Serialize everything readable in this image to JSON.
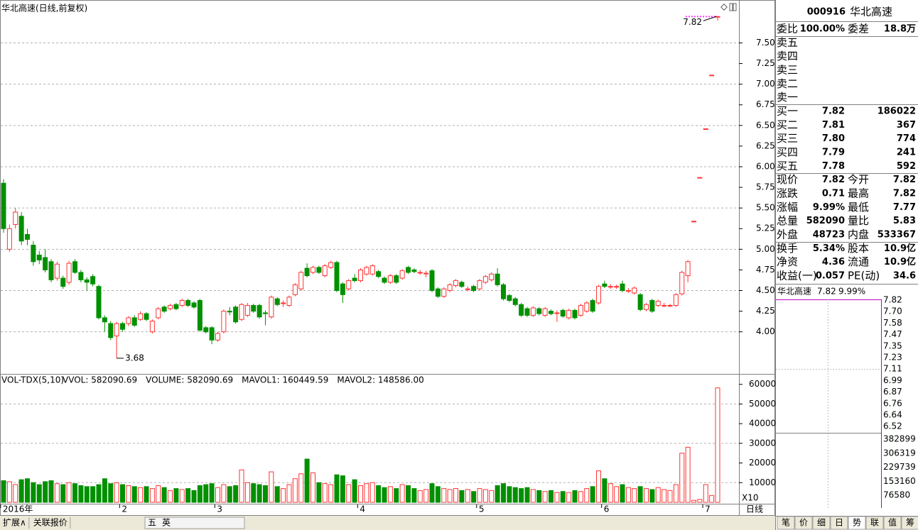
{
  "title": "华北高速(日线,前复权)",
  "chart_data": [
    {
      "type": "candlestick",
      "up_color": "#ff3232",
      "down_color": "#009000",
      "ylim": [
        3.49,
        8.02
      ],
      "yticks": [
        {
          "value": 4.0,
          "label": "4.00"
        },
        {
          "value": 4.25,
          "label": "4.25"
        },
        {
          "value": 4.5,
          "label": "4.50"
        },
        {
          "value": 4.75,
          "label": "4.75"
        },
        {
          "value": 5.0,
          "label": "5.00"
        },
        {
          "value": 5.25,
          "label": "5.25"
        },
        {
          "value": 5.5,
          "label": "5.50"
        },
        {
          "value": 5.75,
          "label": "5.75"
        },
        {
          "value": 6.0,
          "label": "6.00"
        },
        {
          "value": 6.25,
          "label": "6.25"
        },
        {
          "value": 6.5,
          "label": "6.50"
        },
        {
          "value": 6.75,
          "label": "6.75"
        },
        {
          "value": 7.0,
          "label": "7.00"
        },
        {
          "value": 7.25,
          "label": "7.25"
        },
        {
          "value": 7.5,
          "label": "7.50"
        }
      ],
      "grid": true,
      "high_label": 7.82,
      "low_label": 3.68,
      "categories": [
        "2016年",
        null,
        null,
        null,
        null,
        null,
        null,
        null,
        null,
        null,
        null,
        null,
        null,
        null,
        null,
        null,
        null,
        null,
        null,
        null,
        "2",
        null,
        null,
        null,
        null,
        null,
        null,
        null,
        null,
        null,
        null,
        null,
        null,
        null,
        null,
        null,
        "3",
        null,
        null,
        null,
        null,
        null,
        null,
        null,
        null,
        null,
        null,
        null,
        null,
        null,
        null,
        null,
        null,
        null,
        null,
        null,
        null,
        null,
        null,
        null,
        "4",
        null,
        null,
        null,
        null,
        null,
        null,
        null,
        null,
        null,
        null,
        null,
        null,
        null,
        null,
        null,
        null,
        null,
        null,
        null,
        "5",
        null,
        null,
        null,
        null,
        null,
        null,
        null,
        null,
        null,
        null,
        null,
        null,
        null,
        null,
        null,
        null,
        null,
        null,
        null,
        null,
        "6",
        null,
        null,
        null,
        null,
        null,
        null,
        null,
        null,
        null,
        null,
        null,
        null,
        null,
        null,
        null,
        null,
        "7",
        null,
        null
      ],
      "ohlc": [
        [
          5.8,
          5.85,
          5.2,
          5.25
        ],
        [
          5.0,
          5.3,
          4.97,
          5.25
        ],
        [
          5.3,
          5.5,
          5.25,
          5.45
        ],
        [
          5.4,
          5.45,
          5.05,
          5.1
        ],
        [
          5.18,
          5.25,
          5.05,
          5.12
        ],
        [
          5.05,
          5.1,
          4.8,
          4.85
        ],
        [
          4.93,
          4.98,
          4.82,
          4.87
        ],
        [
          4.9,
          5.0,
          4.72,
          4.75
        ],
        [
          4.85,
          4.88,
          4.6,
          4.63
        ],
        [
          4.65,
          4.85,
          4.62,
          4.82
        ],
        [
          4.65,
          4.68,
          4.52,
          4.55
        ],
        [
          4.6,
          4.86,
          4.57,
          4.83
        ],
        [
          4.85,
          4.88,
          4.7,
          4.72
        ],
        [
          4.72,
          4.75,
          4.6,
          4.63
        ],
        [
          4.63,
          4.66,
          4.5,
          4.6
        ],
        [
          4.67,
          4.7,
          4.55,
          4.58
        ],
        [
          4.55,
          4.57,
          4.15,
          4.17
        ],
        [
          4.17,
          4.2,
          4.0,
          4.12
        ],
        [
          4.1,
          4.13,
          3.9,
          3.93
        ],
        [
          3.95,
          4.12,
          3.68,
          4.1
        ],
        [
          4.1,
          4.12,
          4.0,
          4.03
        ],
        [
          4.1,
          4.19,
          4.07,
          4.17
        ],
        [
          4.17,
          4.2,
          4.06,
          4.08
        ],
        [
          4.15,
          4.25,
          4.13,
          4.22
        ],
        [
          4.22,
          4.24,
          4.13,
          4.15
        ],
        [
          4.0,
          4.15,
          3.98,
          4.13
        ],
        [
          4.17,
          4.3,
          4.15,
          4.28
        ],
        [
          4.3,
          4.32,
          4.23,
          4.25
        ],
        [
          4.28,
          4.34,
          4.26,
          4.32
        ],
        [
          4.33,
          4.35,
          4.26,
          4.28
        ],
        [
          4.32,
          4.4,
          4.3,
          4.38
        ],
        [
          4.38,
          4.4,
          4.3,
          4.32
        ],
        [
          4.35,
          4.37,
          4.28,
          4.3
        ],
        [
          4.38,
          4.4,
          4.0,
          4.02
        ],
        [
          4.05,
          4.07,
          3.98,
          4.0
        ],
        [
          4.05,
          4.07,
          3.85,
          3.9
        ],
        [
          3.9,
          4.0,
          3.88,
          3.98
        ],
        [
          4.0,
          4.27,
          3.98,
          4.25
        ],
        [
          4.25,
          4.3,
          4.2,
          4.24
        ],
        [
          4.3,
          4.32,
          4.1,
          4.12
        ],
        [
          4.15,
          4.35,
          4.13,
          4.33
        ],
        [
          4.2,
          4.35,
          4.18,
          4.32
        ],
        [
          4.32,
          4.34,
          4.23,
          4.25
        ],
        [
          4.32,
          4.34,
          4.16,
          4.18
        ],
        [
          4.23,
          4.26,
          4.08,
          4.22
        ],
        [
          4.18,
          4.44,
          4.16,
          4.42
        ],
        [
          4.4,
          4.42,
          4.31,
          4.33
        ],
        [
          4.35,
          4.38,
          4.3,
          4.35
        ],
        [
          4.32,
          4.44,
          4.3,
          4.42
        ],
        [
          4.45,
          4.59,
          4.43,
          4.57
        ],
        [
          4.52,
          4.74,
          4.5,
          4.72
        ],
        [
          4.77,
          4.83,
          4.66,
          4.68
        ],
        [
          4.72,
          4.8,
          4.7,
          4.78
        ],
        [
          4.78,
          4.8,
          4.7,
          4.72
        ],
        [
          4.68,
          4.82,
          4.66,
          4.8
        ],
        [
          4.78,
          4.86,
          4.76,
          4.84
        ],
        [
          4.84,
          4.86,
          4.48,
          4.5
        ],
        [
          4.58,
          4.6,
          4.35,
          4.45
        ],
        [
          4.52,
          4.64,
          4.5,
          4.62
        ],
        [
          4.65,
          4.7,
          4.6,
          4.62
        ],
        [
          4.62,
          4.77,
          4.6,
          4.75
        ],
        [
          4.7,
          4.8,
          4.68,
          4.78
        ],
        [
          4.7,
          4.82,
          4.68,
          4.8
        ],
        [
          4.73,
          4.75,
          4.65,
          4.67
        ],
        [
          4.65,
          4.67,
          4.58,
          4.6
        ],
        [
          4.6,
          4.7,
          4.58,
          4.68
        ],
        [
          4.68,
          4.7,
          4.58,
          4.6
        ],
        [
          4.65,
          4.76,
          4.63,
          4.74
        ],
        [
          4.78,
          4.8,
          4.7,
          4.72
        ],
        [
          4.75,
          4.77,
          4.71,
          4.73
        ],
        [
          4.72,
          4.75,
          4.69,
          4.72
        ],
        [
          4.71,
          4.74,
          4.66,
          4.71
        ],
        [
          4.74,
          4.76,
          4.48,
          4.5
        ],
        [
          4.52,
          4.54,
          4.41,
          4.43
        ],
        [
          4.43,
          4.54,
          4.41,
          4.52
        ],
        [
          4.5,
          4.59,
          4.48,
          4.57
        ],
        [
          4.56,
          4.64,
          4.54,
          4.62
        ],
        [
          4.6,
          4.62,
          4.53,
          4.55
        ],
        [
          4.52,
          4.55,
          4.49,
          4.52
        ],
        [
          4.55,
          4.57,
          4.48,
          4.5
        ],
        [
          4.52,
          4.64,
          4.5,
          4.62
        ],
        [
          4.6,
          4.69,
          4.58,
          4.67
        ],
        [
          4.63,
          4.72,
          4.61,
          4.7
        ],
        [
          4.7,
          4.77,
          4.55,
          4.57
        ],
        [
          4.57,
          4.59,
          4.38,
          4.4
        ],
        [
          4.44,
          4.46,
          4.36,
          4.38
        ],
        [
          4.4,
          4.42,
          4.31,
          4.33
        ],
        [
          4.33,
          4.35,
          4.18,
          4.2
        ],
        [
          4.28,
          4.3,
          4.18,
          4.2
        ],
        [
          4.2,
          4.31,
          4.18,
          4.29
        ],
        [
          4.28,
          4.3,
          4.2,
          4.22
        ],
        [
          4.2,
          4.3,
          4.18,
          4.28
        ],
        [
          4.25,
          4.27,
          4.2,
          4.22
        ],
        [
          4.23,
          4.26,
          4.12,
          4.23
        ],
        [
          4.26,
          4.28,
          4.17,
          4.19
        ],
        [
          4.17,
          4.28,
          4.15,
          4.26
        ],
        [
          4.26,
          4.28,
          4.15,
          4.17
        ],
        [
          4.2,
          4.34,
          4.18,
          4.32
        ],
        [
          4.25,
          4.37,
          4.23,
          4.35
        ],
        [
          4.38,
          4.4,
          4.23,
          4.25
        ],
        [
          4.35,
          4.57,
          4.33,
          4.55
        ],
        [
          4.58,
          4.62,
          4.53,
          4.55
        ],
        [
          4.55,
          4.58,
          4.52,
          4.55
        ],
        [
          4.55,
          4.57,
          4.52,
          4.55
        ],
        [
          4.58,
          4.62,
          4.48,
          4.5
        ],
        [
          4.5,
          4.53,
          4.47,
          4.5
        ],
        [
          4.47,
          4.55,
          4.45,
          4.53
        ],
        [
          4.45,
          4.47,
          4.25,
          4.27
        ],
        [
          4.27,
          4.35,
          4.25,
          4.33
        ],
        [
          4.38,
          4.4,
          4.23,
          4.25
        ],
        [
          4.32,
          4.39,
          4.3,
          4.37
        ],
        [
          4.32,
          4.35,
          4.3,
          4.32
        ],
        [
          4.32,
          4.34,
          4.3,
          4.32
        ],
        [
          4.32,
          4.47,
          4.3,
          4.45
        ],
        [
          4.46,
          4.74,
          4.44,
          4.72
        ],
        [
          4.68,
          4.87,
          4.6,
          4.85
        ],
        [
          5.34,
          5.34,
          5.34,
          5.34
        ],
        [
          5.87,
          5.87,
          5.87,
          5.87
        ],
        [
          6.46,
          6.46,
          6.46,
          6.46
        ],
        [
          7.11,
          7.11,
          7.11,
          7.11
        ],
        [
          7.82,
          7.82,
          7.77,
          7.82
        ]
      ]
    },
    {
      "type": "bar",
      "title": "VOL-TDX(5,10)",
      "indicators": [
        {
          "text": "VVOL: 582090.69",
          "color": "#000000"
        },
        {
          "text": "VOLUME: 582090.69",
          "color": "#d000d0"
        },
        {
          "text": "MAVOL1: 160449.59",
          "color": "#d000d0"
        },
        {
          "text": "MAVOL2: 148586.00",
          "color": "#808080"
        }
      ],
      "ylim": [
        0,
        65300
      ],
      "yticks": [
        10000,
        20000,
        30000,
        40000,
        50000,
        60000
      ],
      "grid": true,
      "unit_label": "X10",
      "values": [
        11000,
        10500,
        9000,
        11500,
        12000,
        10000,
        9000,
        10500,
        11000,
        9500,
        9000,
        10000,
        9500,
        8500,
        8000,
        8000,
        9000,
        12000,
        9500,
        10000,
        9000,
        8500,
        8000,
        7500,
        8000,
        7000,
        8500,
        7500,
        6000,
        7000,
        6500,
        7000,
        6000,
        8500,
        9000,
        9500,
        7500,
        9000,
        8000,
        8500,
        16500,
        10000,
        9500,
        9000,
        8500,
        15500,
        8000,
        7000,
        9000,
        12000,
        14500,
        22000,
        15000,
        10000,
        9500,
        9000,
        14000,
        13500,
        9000,
        11500,
        8500,
        9500,
        10000,
        8500,
        7500,
        8000,
        7000,
        9000,
        8500,
        7000,
        6000,
        6500,
        9500,
        8000,
        7000,
        6500,
        7000,
        6000,
        6500,
        5500,
        7000,
        6500,
        6000,
        8500,
        9500,
        8000,
        7500,
        7000,
        7500,
        6500,
        6000,
        5500,
        6000,
        5000,
        5500,
        5000,
        6000,
        5500,
        7000,
        8000,
        16000,
        12000,
        9500,
        8000,
        9000,
        7500,
        7000,
        8000,
        7000,
        6500,
        7500,
        6500,
        6000,
        9000,
        25000,
        28000,
        1000,
        1500,
        9000,
        3500,
        58209
      ]
    }
  ],
  "period": "日线",
  "toolbar": [
    "扩展∧",
    "关联报价"
  ],
  "ime": [
    "五",
    "英"
  ],
  "quote": {
    "code": "000916",
    "name": "华北高速",
    "rows": [
      {
        "label": "委比",
        "value": "100.00%",
        "label2": "委差",
        "value2": "18.8万",
        "color": "#e00000",
        "color2": "#e00000"
      },
      {
        "label": "卖五"
      },
      {
        "label": "卖四"
      },
      {
        "label": "卖三"
      },
      {
        "label": "卖二"
      },
      {
        "label": "卖一"
      },
      {
        "label": "买一",
        "value": "7.82",
        "value2": "186022",
        "color": "#e00000",
        "color2": "#c85a00"
      },
      {
        "label": "买二",
        "value": "7.81",
        "value2": "367",
        "color": "#e00000",
        "color2": "#c85a00"
      },
      {
        "label": "买三",
        "value": "7.80",
        "value2": "774",
        "color": "#e00000",
        "color2": "#c85a00"
      },
      {
        "label": "买四",
        "value": "7.79",
        "value2": "241",
        "color": "#e00000",
        "color2": "#c85a00"
      },
      {
        "label": "买五",
        "value": "7.78",
        "value2": "592",
        "color": "#e00000",
        "color2": "#c85a00"
      },
      {
        "label": "现价",
        "value": "7.82",
        "label2": "今开",
        "value2": "7.82",
        "color": "#e00000",
        "color2": "#e00000"
      },
      {
        "label": "涨跌",
        "value": "0.71",
        "label2": "最高",
        "value2": "7.82",
        "color": "#e00000",
        "color2": "#e00000"
      },
      {
        "label": "涨幅",
        "value": "9.99%",
        "label2": "最低",
        "value2": "7.77",
        "color": "#e00000",
        "color2": "#e00000"
      },
      {
        "label": "总量",
        "value": "582090",
        "label2": "量比",
        "value2": "5.83",
        "color": "#c85a00",
        "color2": "#c000c0"
      },
      {
        "label": "外盘",
        "value": "48723",
        "label2": "内盘",
        "value2": "533367",
        "color": "#e00000",
        "color2": "#008000"
      },
      {
        "label": "换手",
        "value": "5.34%",
        "label2": "股本",
        "value2": "10.9亿",
        "color": "#000000",
        "color2": "#000000"
      },
      {
        "label": "净资",
        "value": "4.36",
        "label2": "流通",
        "value2": "10.9亿",
        "color": "#000000",
        "color2": "#000000"
      },
      {
        "label": "收益(一)",
        "value": "0.057",
        "label2": "PE(动)",
        "value2": "34.6",
        "color": "#000000",
        "color2": "#000000"
      }
    ]
  },
  "intraday": {
    "name": "华北高速",
    "price": "7.82",
    "change": "9.99%",
    "price_labels": [
      "7.82",
      "7.70",
      "7.58",
      "7.47",
      "7.35",
      "7.23",
      "7.11",
      "6.99",
      "6.87",
      "6.76",
      "6.64",
      "6.52"
    ],
    "volume_labels": [
      "382899",
      "306319",
      "229739",
      "153160",
      "76580"
    ]
  },
  "tabs": [
    "笔",
    "价",
    "细",
    "日",
    "势",
    "联",
    "值",
    "筹"
  ],
  "active_tab": "势"
}
